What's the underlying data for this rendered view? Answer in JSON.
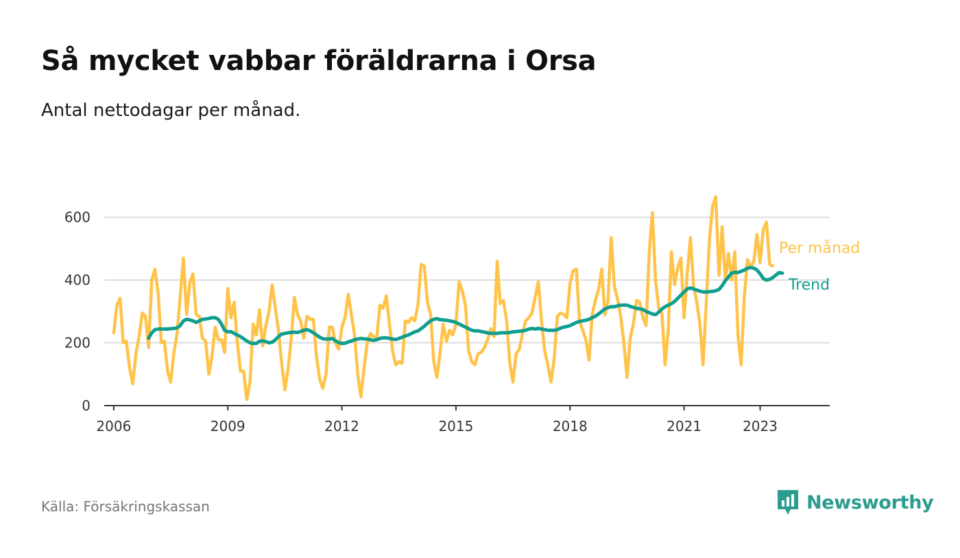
{
  "title": "Så mycket vabbar föräldrarna i Orsa",
  "subtitle": "Antal nettodagar per månad.",
  "source": "Källa: Försäkringskassan",
  "brand": {
    "name": "Newsworthy",
    "icon": "newsworthy-logo-icon",
    "color": "#2a9d8f"
  },
  "chart_data": {
    "type": "line",
    "title": "Så mycket vabbar föräldrarna i Orsa",
    "subtitle": "Antal nettodagar per månad.",
    "xlabel": "",
    "ylabel": "",
    "xlim": [
      2005.75,
      2024.83
    ],
    "ylim": [
      0,
      680
    ],
    "yticks": [
      0,
      200,
      400,
      600
    ],
    "ytick_labels": [
      "0",
      "200",
      "400",
      "600"
    ],
    "xticks": [
      2006,
      2009,
      2012,
      2015,
      2018,
      2021,
      2023
    ],
    "xtick_labels": [
      "2006",
      "2009",
      "2012",
      "2015",
      "2018",
      "2021",
      "2023"
    ],
    "grid": true,
    "legend": "right, labels at line ends",
    "series": [
      {
        "name": "Per månad",
        "color": "#ffc34a",
        "start": 2006.0,
        "step_months": 1,
        "values": [
          232,
          320,
          342,
          200,
          205,
          120,
          70,
          165,
          220,
          295,
          285,
          185,
          400,
          435,
          360,
          200,
          205,
          110,
          75,
          170,
          230,
          350,
          470,
          290,
          390,
          420,
          290,
          285,
          215,
          205,
          100,
          155,
          250,
          210,
          210,
          170,
          373,
          280,
          330,
          200,
          110,
          110,
          20,
          75,
          260,
          225,
          305,
          190,
          255,
          300,
          385,
          310,
          240,
          135,
          50,
          115,
          210,
          345,
          290,
          270,
          215,
          285,
          275,
          275,
          155,
          85,
          55,
          100,
          250,
          250,
          200,
          180,
          250,
          280,
          355,
          290,
          225,
          100,
          28,
          120,
          200,
          230,
          220,
          215,
          320,
          310,
          350,
          260,
          175,
          130,
          140,
          135,
          270,
          265,
          280,
          270,
          320,
          450,
          445,
          330,
          290,
          140,
          90,
          170,
          260,
          205,
          240,
          225,
          260,
          395,
          365,
          320,
          175,
          140,
          130,
          165,
          170,
          185,
          210,
          245,
          220,
          460,
          325,
          335,
          270,
          135,
          75,
          165,
          180,
          230,
          270,
          280,
          295,
          345,
          395,
          270,
          175,
          130,
          75,
          150,
          285,
          295,
          290,
          280,
          390,
          430,
          435,
          270,
          240,
          210,
          145,
          290,
          335,
          370,
          435,
          290,
          335,
          535,
          380,
          340,
          285,
          200,
          90,
          215,
          260,
          335,
          330,
          280,
          255,
          490,
          615,
          400,
          310,
          295,
          130,
          240,
          490,
          385,
          440,
          470,
          280,
          420,
          535,
          380,
          330,
          260,
          130,
          330,
          530,
          635,
          665,
          415,
          570,
          400,
          485,
          400,
          490,
          225,
          130,
          345,
          465,
          440,
          460,
          545,
          455,
          560,
          585,
          450,
          445
        ]
      },
      {
        "name": "Trend",
        "color": "#119e8f",
        "start": 2006.917,
        "step_months": 1,
        "values": [
          215,
          232,
          242,
          244,
          244,
          244,
          244,
          245,
          246,
          248,
          255,
          270,
          275,
          273,
          270,
          265,
          270,
          275,
          276,
          278,
          280,
          280,
          275,
          260,
          240,
          235,
          236,
          230,
          225,
          220,
          213,
          206,
          200,
          198,
          198,
          205,
          206,
          204,
          200,
          202,
          210,
          220,
          228,
          230,
          232,
          233,
          234,
          233,
          236,
          240,
          242,
          238,
          232,
          225,
          218,
          213,
          212,
          212,
          214,
          206,
          201,
          198,
          199,
          203,
          206,
          210,
          212,
          214,
          213,
          212,
          210,
          208,
          210,
          214,
          216,
          216,
          214,
          212,
          211,
          214,
          218,
          222,
          225,
          230,
          235,
          238,
          245,
          253,
          262,
          270,
          275,
          277,
          274,
          273,
          272,
          270,
          268,
          265,
          260,
          255,
          250,
          245,
          240,
          238,
          238,
          236,
          234,
          232,
          230,
          230,
          230,
          232,
          232,
          232,
          233,
          235,
          236,
          237,
          238,
          240,
          244,
          246,
          244,
          246,
          244,
          242,
          240,
          240,
          240,
          242,
          247,
          250,
          252,
          255,
          260,
          265,
          268,
          270,
          272,
          275,
          280,
          285,
          292,
          300,
          308,
          312,
          315,
          315,
          318,
          320,
          320,
          320,
          316,
          313,
          310,
          308,
          306,
          300,
          296,
          292,
          290,
          298,
          308,
          315,
          320,
          325,
          332,
          342,
          352,
          362,
          372,
          375,
          372,
          368,
          365,
          362,
          362,
          363,
          364,
          366,
          370,
          382,
          398,
          410,
          422,
          425,
          424,
          428,
          432,
          438,
          440,
          438,
          432,
          420,
          405,
          400,
          402,
          408,
          416,
          424,
          422
        ]
      }
    ]
  }
}
